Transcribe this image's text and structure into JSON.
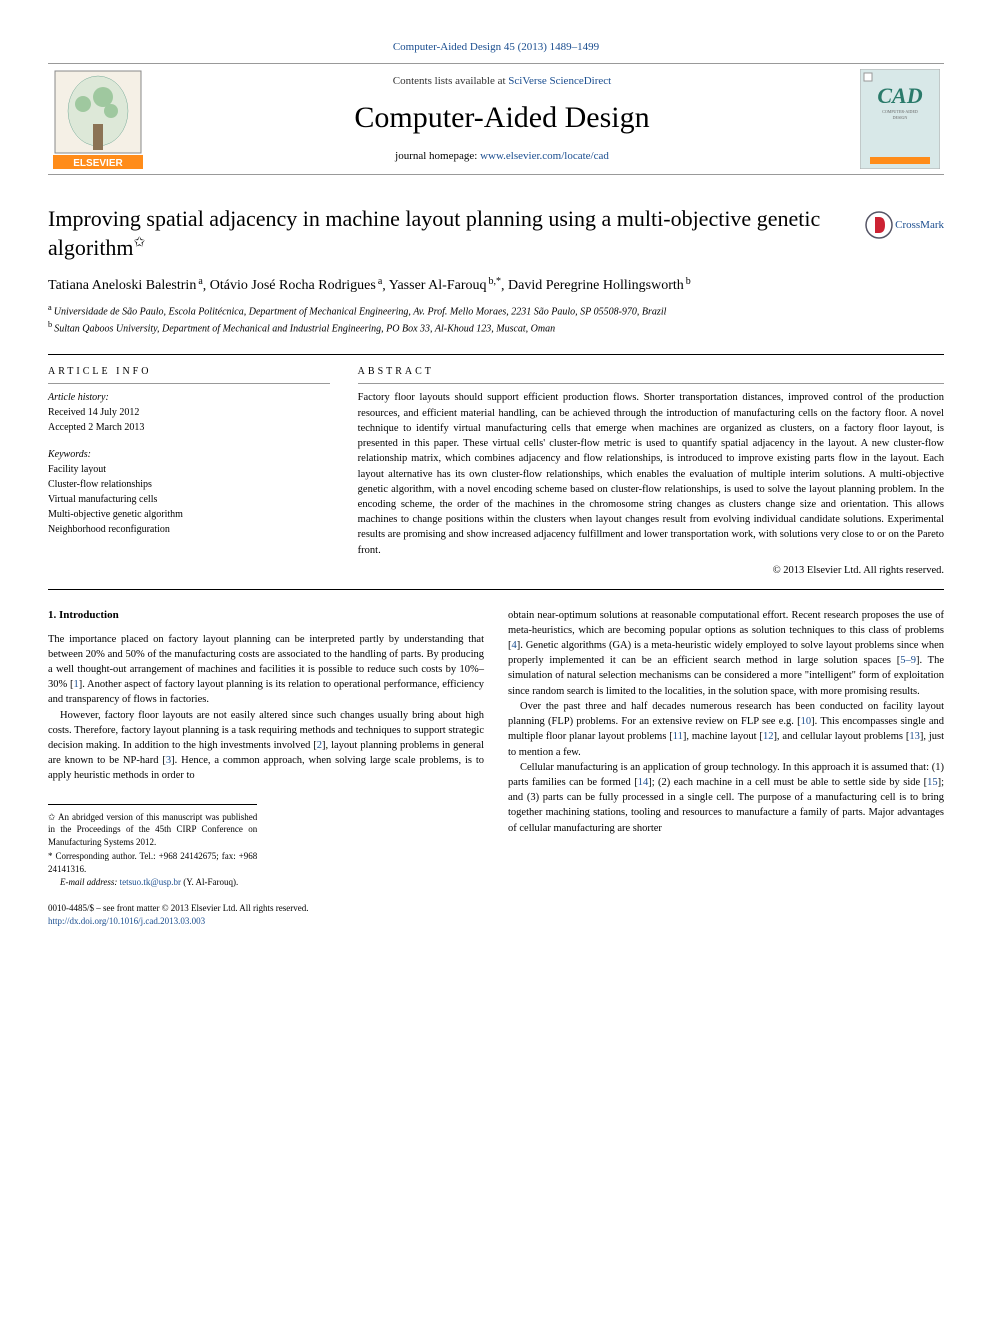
{
  "colors": {
    "link": "#1a4d8f",
    "text": "#000000",
    "rule": "#999999"
  },
  "running_header": "Computer-Aided Design 45 (2013) 1489–1499",
  "masthead": {
    "contents_prefix": "Contents lists available at ",
    "contents_link": "SciVerse ScienceDirect",
    "journal_name": "Computer-Aided Design",
    "homepage_prefix": "journal homepage: ",
    "homepage_link": "www.elsevier.com/locate/cad",
    "publisher_name": "ELSEVIER",
    "cover_label": "CAD"
  },
  "article": {
    "title": "Improving spatial adjacency in machine layout planning using a multi-objective genetic algorithm",
    "title_note_marker": "✩",
    "crossmark_label": "CrossMark",
    "authors": [
      {
        "name": "Tatiana Aneloski Balestrin",
        "aff": "a"
      },
      {
        "name": "Otávio José Rocha Rodrigues",
        "aff": "a"
      },
      {
        "name": "Yasser Al-Farouq",
        "aff": "b",
        "corr": "*"
      },
      {
        "name": "David Peregrine Hollingsworth",
        "aff": "b"
      }
    ],
    "affiliations": [
      {
        "label": "a",
        "text": "Universidade de São Paulo, Escola Politécnica, Department of Mechanical Engineering, Av. Prof. Mello Moraes, 2231 São Paulo, SP 05508-970, Brazil"
      },
      {
        "label": "b",
        "text": "Sultan Qaboos University, Department of Mechanical and Industrial Engineering, PO Box 33, Al-Khoud 123, Muscat, Oman"
      }
    ],
    "info": {
      "heading_history": "ARTICLE INFO",
      "history": [
        "Article history:",
        "Received 14 July 2012",
        "Accepted 2 March 2013"
      ],
      "keywords_label": "Keywords:",
      "keywords": [
        "Facility layout",
        "Cluster-flow relationships",
        "Virtual manufacturing cells",
        "Multi-objective genetic algorithm",
        "Neighborhood reconfiguration"
      ]
    },
    "abstract": {
      "heading": "ABSTRACT",
      "paragraphs": [
        "Factory floor layouts should support efficient production flows. Shorter transportation distances, improved control of the production resources, and efficient material handling, can be achieved through the introduction of manufacturing cells on the factory floor. A novel technique to identify virtual manufacturing cells that emerge when machines are organized as clusters, on a factory floor layout, is presented in this paper. These virtual cells' cluster-flow metric is used to quantify spatial adjacency in the layout. A new cluster-flow relationship matrix, which combines adjacency and flow relationships, is introduced to improve existing parts flow in the layout. Each layout alternative has its own cluster-flow relationships, which enables the evaluation of multiple interim solutions. A multi-objective genetic algorithm, with a novel encoding scheme based on cluster-flow relationships, is used to solve the layout planning problem. In the encoding scheme, the order of the machines in the chromosome string changes as clusters change size and orientation. This allows machines to change positions within the clusters when layout changes result from evolving individual candidate solutions. Experimental results are promising and show increased adjacency fulfillment and lower transportation work, with solutions very close to or on the Pareto front.",
        ""
      ],
      "copyright": "© 2013 Elsevier Ltd. All rights reserved."
    }
  },
  "body": {
    "section_number": "1.",
    "section_title": "Introduction",
    "col1": [
      "The importance placed on factory layout planning can be interpreted partly by understanding that between 20% and 50% of the manufacturing costs are associated to the handling of parts. By producing a well thought-out arrangement of machines and facilities it is possible to reduce such costs by 10%–30% [1]. Another aspect of factory layout planning is its relation to operational performance, efficiency and transparency of flows in factories.",
      "However, factory floor layouts are not easily altered since such changes usually bring about high costs. Therefore, factory layout planning is a task requiring methods and techniques to support strategic decision making. In addition to the high investments involved [2], layout planning problems in general are known to be NP-hard [3]. Hence, a common approach, when solving large scale problems, is to apply heuristic methods in order to"
    ],
    "col2": [
      "obtain near-optimum solutions at reasonable computational effort. Recent research proposes the use of meta-heuristics, which are becoming popular options as solution techniques to this class of problems [4]. Genetic algorithms (GA) is a meta-heuristic widely employed to solve layout problems since when properly implemented it can be an efficient search method in large solution spaces [5–9]. The simulation of natural selection mechanisms can be considered a more \"intelligent\" form of exploitation since random search is limited to the localities, in the solution space, with more promising results.",
      "Over the past three and half decades numerous research has been conducted on facility layout planning (FLP) problems. For an extensive review on FLP see e.g. [10]. This encompasses single and multiple floor planar layout problems [11], machine layout [12], and cellular layout problems [13], just to mention a few.",
      "Cellular manufacturing is an application of group technology. In this approach it is assumed that: (1) parts families can be formed [14]; (2) each machine in a cell must be able to settle side by side [15]; and (3) parts can be fully processed in a single cell. The purpose of a manufacturing cell is to bring together machining stations, tooling and resources to manufacture a family of parts. Major advantages of cellular manufacturing are shorter"
    ]
  },
  "footnotes": {
    "note": "✩ An abridged version of this manuscript was published in the Proceedings of the 45th CIRP Conference on Manufacturing Systems 2012.",
    "corr_label": "* Corresponding author. Tel.: +968 24142675; fax: +968 24141316.",
    "email_label": "E-mail address:",
    "email": "tetsuo.tk@usp.br",
    "email_name": "(Y. Al-Farouq)."
  },
  "doi": {
    "prefix": "0010-4485/$ – see front matter © 2013 Elsevier Ltd. All rights reserved.",
    "link": "http://dx.doi.org/10.1016/j.cad.2013.03.003"
  }
}
